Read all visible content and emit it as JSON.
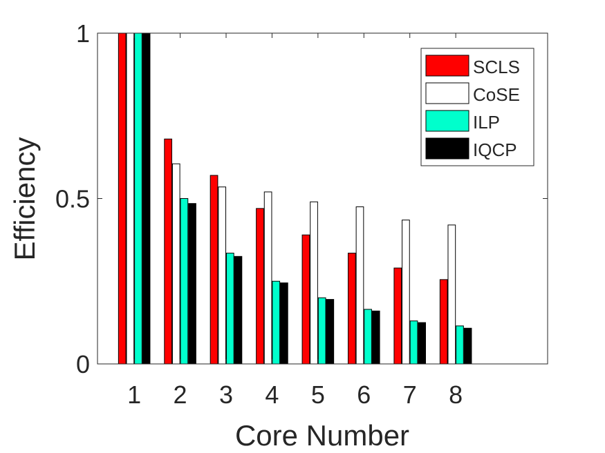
{
  "chart_data": {
    "type": "bar",
    "xlabel": "Core Number",
    "ylabel": "Efficiency",
    "categories": [
      "1",
      "2",
      "3",
      "4",
      "5",
      "6",
      "7",
      "8"
    ],
    "ylim": [
      0,
      1
    ],
    "xlim": [
      0.2,
      10
    ],
    "yticks": [
      {
        "value": 0,
        "label": "0"
      },
      {
        "value": 0.5,
        "label": "0.5"
      },
      {
        "value": 1,
        "label": "1"
      }
    ],
    "grid": false,
    "legend_position": "top-right",
    "series": [
      {
        "name": "SCLS",
        "color": "#ff0000",
        "values": [
          1.0,
          0.68,
          0.57,
          0.47,
          0.39,
          0.335,
          0.29,
          0.255
        ]
      },
      {
        "name": "CoSE",
        "color": "#ffffff",
        "values": [
          1.0,
          0.605,
          0.535,
          0.52,
          0.49,
          0.475,
          0.435,
          0.42
        ]
      },
      {
        "name": "ILP",
        "color": "#00ffcc",
        "values": [
          1.0,
          0.5,
          0.335,
          0.25,
          0.2,
          0.165,
          0.13,
          0.115
        ]
      },
      {
        "name": "IQCP",
        "color": "#000000",
        "values": [
          1.0,
          0.485,
          0.325,
          0.245,
          0.195,
          0.16,
          0.125,
          0.108
        ]
      }
    ]
  }
}
